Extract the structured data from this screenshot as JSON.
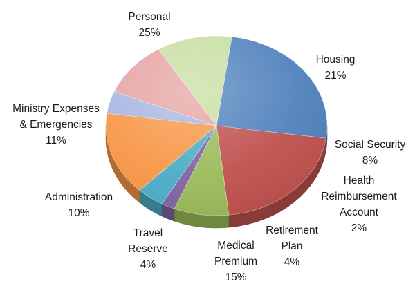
{
  "chart_data": {
    "type": "pie",
    "title": "",
    "style": "3d",
    "slices": [
      {
        "label_lines": [
          "Personal"
        ],
        "percent_label": "25%",
        "value": 25,
        "color": "#4f81bd"
      },
      {
        "label_lines": [
          "Housing"
        ],
        "percent_label": "21%",
        "value": 21,
        "color": "#c0504d"
      },
      {
        "label_lines": [
          "Social Security"
        ],
        "percent_label": "8%",
        "value": 8,
        "color": "#9bbb59"
      },
      {
        "label_lines": [
          "Health",
          "Reimbursement",
          "Account"
        ],
        "percent_label": "2%",
        "value": 2,
        "color": "#8064a2"
      },
      {
        "label_lines": [
          "Retirement",
          "Plan"
        ],
        "percent_label": "4%",
        "value": 4,
        "color": "#4bacc6"
      },
      {
        "label_lines": [
          "Medical",
          "Premium"
        ],
        "percent_label": "15%",
        "value": 15,
        "color": "#f79646"
      },
      {
        "label_lines": [
          "Travel",
          "Reserve"
        ],
        "percent_label": "4%",
        "value": 4,
        "color": "#a5b6e0"
      },
      {
        "label_lines": [
          "Administration"
        ],
        "percent_label": "10%",
        "value": 10,
        "color": "#e6a3a3"
      },
      {
        "label_lines": [
          "Ministry Expenses",
          "& Emergencies"
        ],
        "percent_label": "11%",
        "value": 11,
        "color": "#c7dea1"
      }
    ]
  }
}
